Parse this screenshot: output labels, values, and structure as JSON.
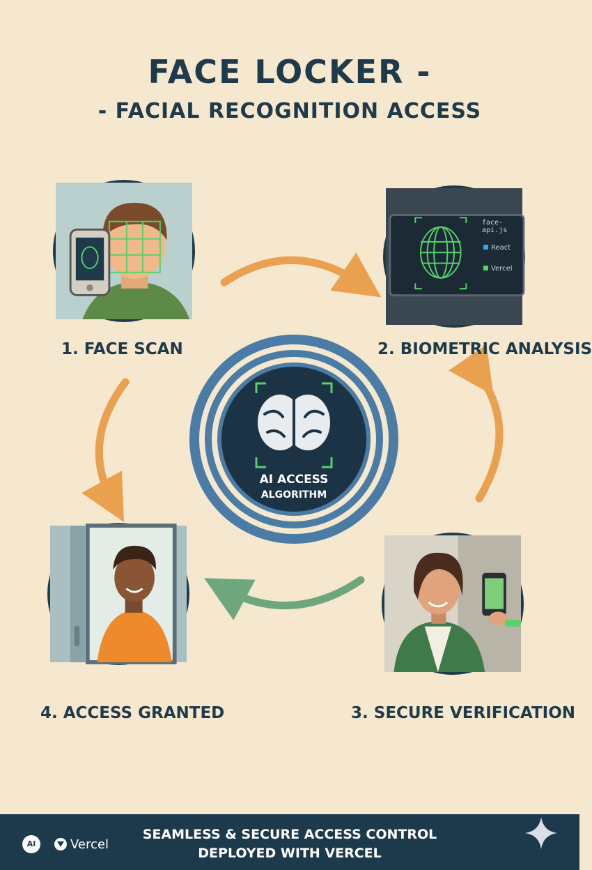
{
  "header": {
    "title": "FACE LOCKER -",
    "subtitle": "- FACIAL RECOGNITION ACCESS"
  },
  "steps": [
    {
      "label": "1. FACE SCAN",
      "icon": "face-scan-illustration"
    },
    {
      "label": "2. BIOMETRIC ANALYSIS",
      "icon": "biometric-screen-illustration"
    },
    {
      "label": "3. SECURE VERIFICATION",
      "icon": "phone-verification-illustration"
    },
    {
      "label": "4. ACCESS GRANTED",
      "icon": "door-access-illustration"
    }
  ],
  "screen": {
    "items": [
      "face-api.js",
      "React",
      "Vercel"
    ]
  },
  "center": {
    "line1": "AI ACCESS",
    "line2": "ALGORITHM",
    "icon": "brain-icon"
  },
  "footer": {
    "badge": "AI",
    "brand": "Vercel",
    "line1": "SEAMLESS & SECURE ACCESS CONTROL",
    "line2": "DEPLOYED WITH VERCEL"
  },
  "colors": {
    "background": "#f6e8cf",
    "navy": "#1f3a4a",
    "arrow_orange": "#e9a150",
    "arrow_green": "#6ea67d",
    "scan_green": "#55d26a",
    "ring_blue": "#4a7ca5"
  }
}
